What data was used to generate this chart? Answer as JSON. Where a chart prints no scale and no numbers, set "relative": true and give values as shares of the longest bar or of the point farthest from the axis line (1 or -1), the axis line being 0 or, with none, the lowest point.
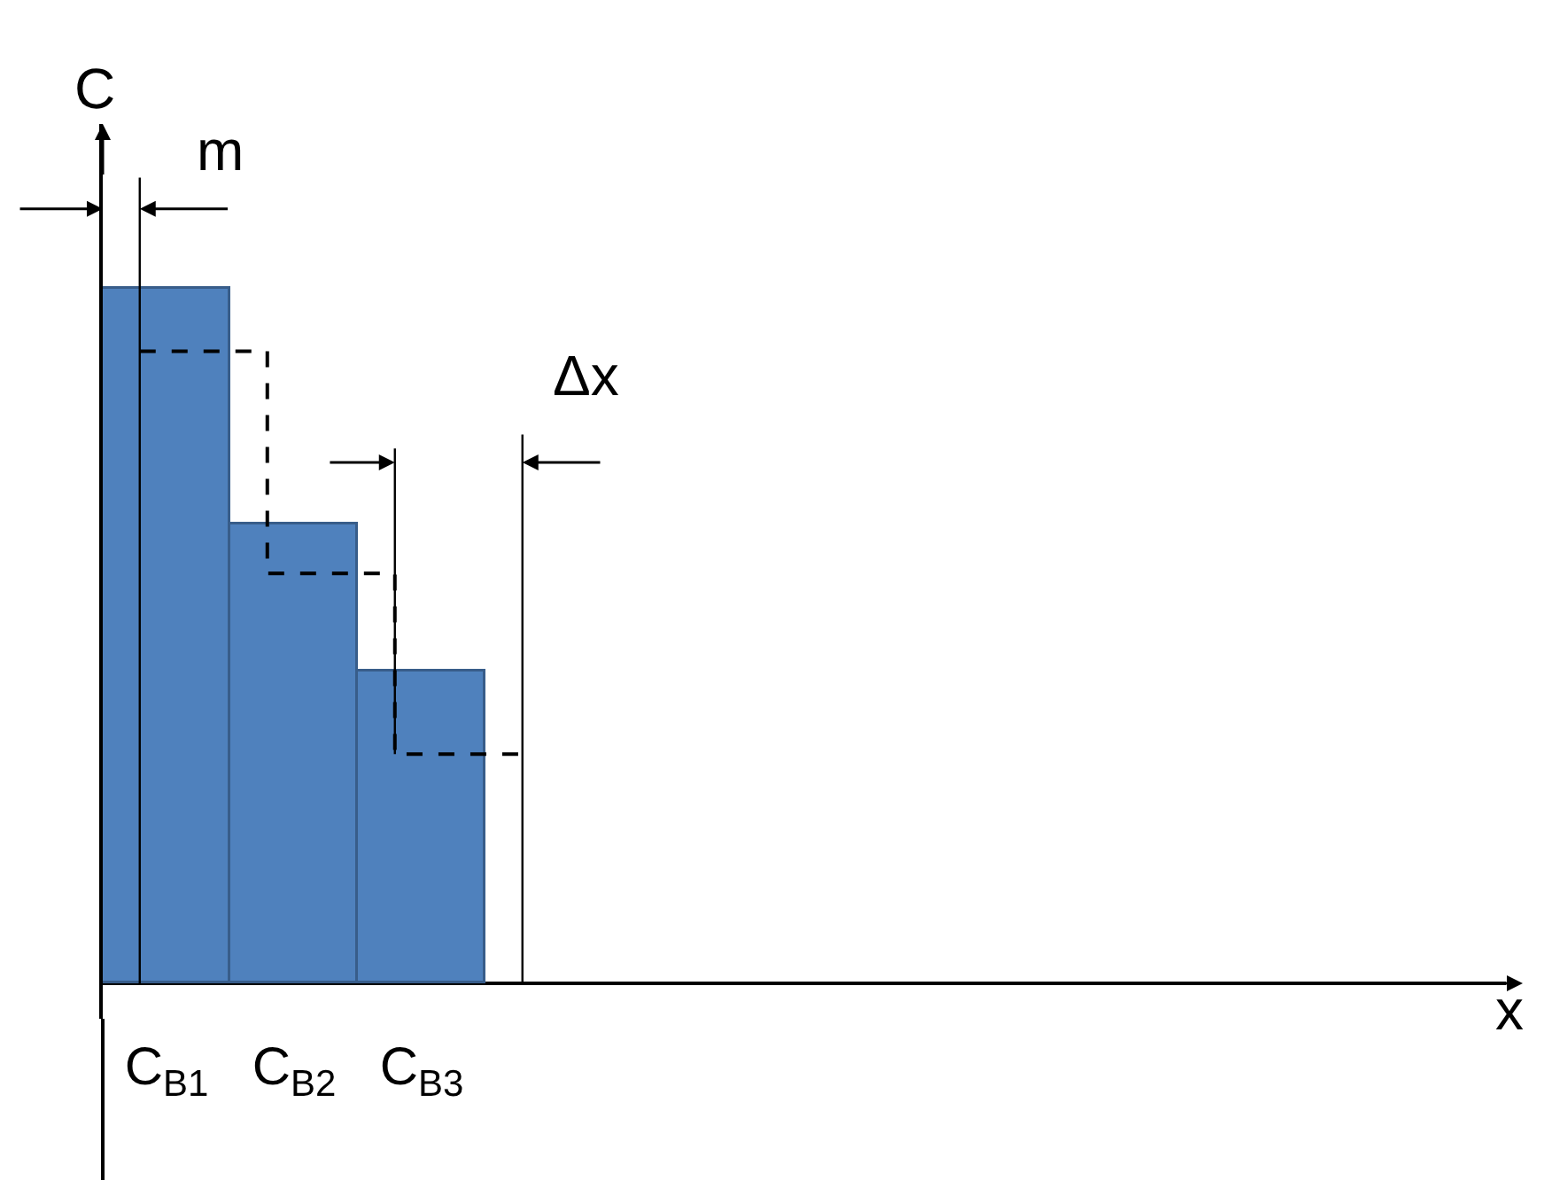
{
  "chart_data": {
    "type": "bar",
    "relative": true,
    "ylabel": "C",
    "categories": [
      "C$_{B1}$",
      "C$_{B2}$",
      "C$_{B3}$"
    ],
    "annotations": [
      "m",
      "Δx",
      "x"
    ],
    "series": [
      {
        "color": "#4f81bd",
        "values": [
          1,
          0.66,
          0.45
        ]
      },
      {
        "type": "step",
        "color": "#000000",
        "line_style": "dashed",
        "values": [
          0.91,
          0.59,
          0.33
        ]
      }
    ]
  }
}
